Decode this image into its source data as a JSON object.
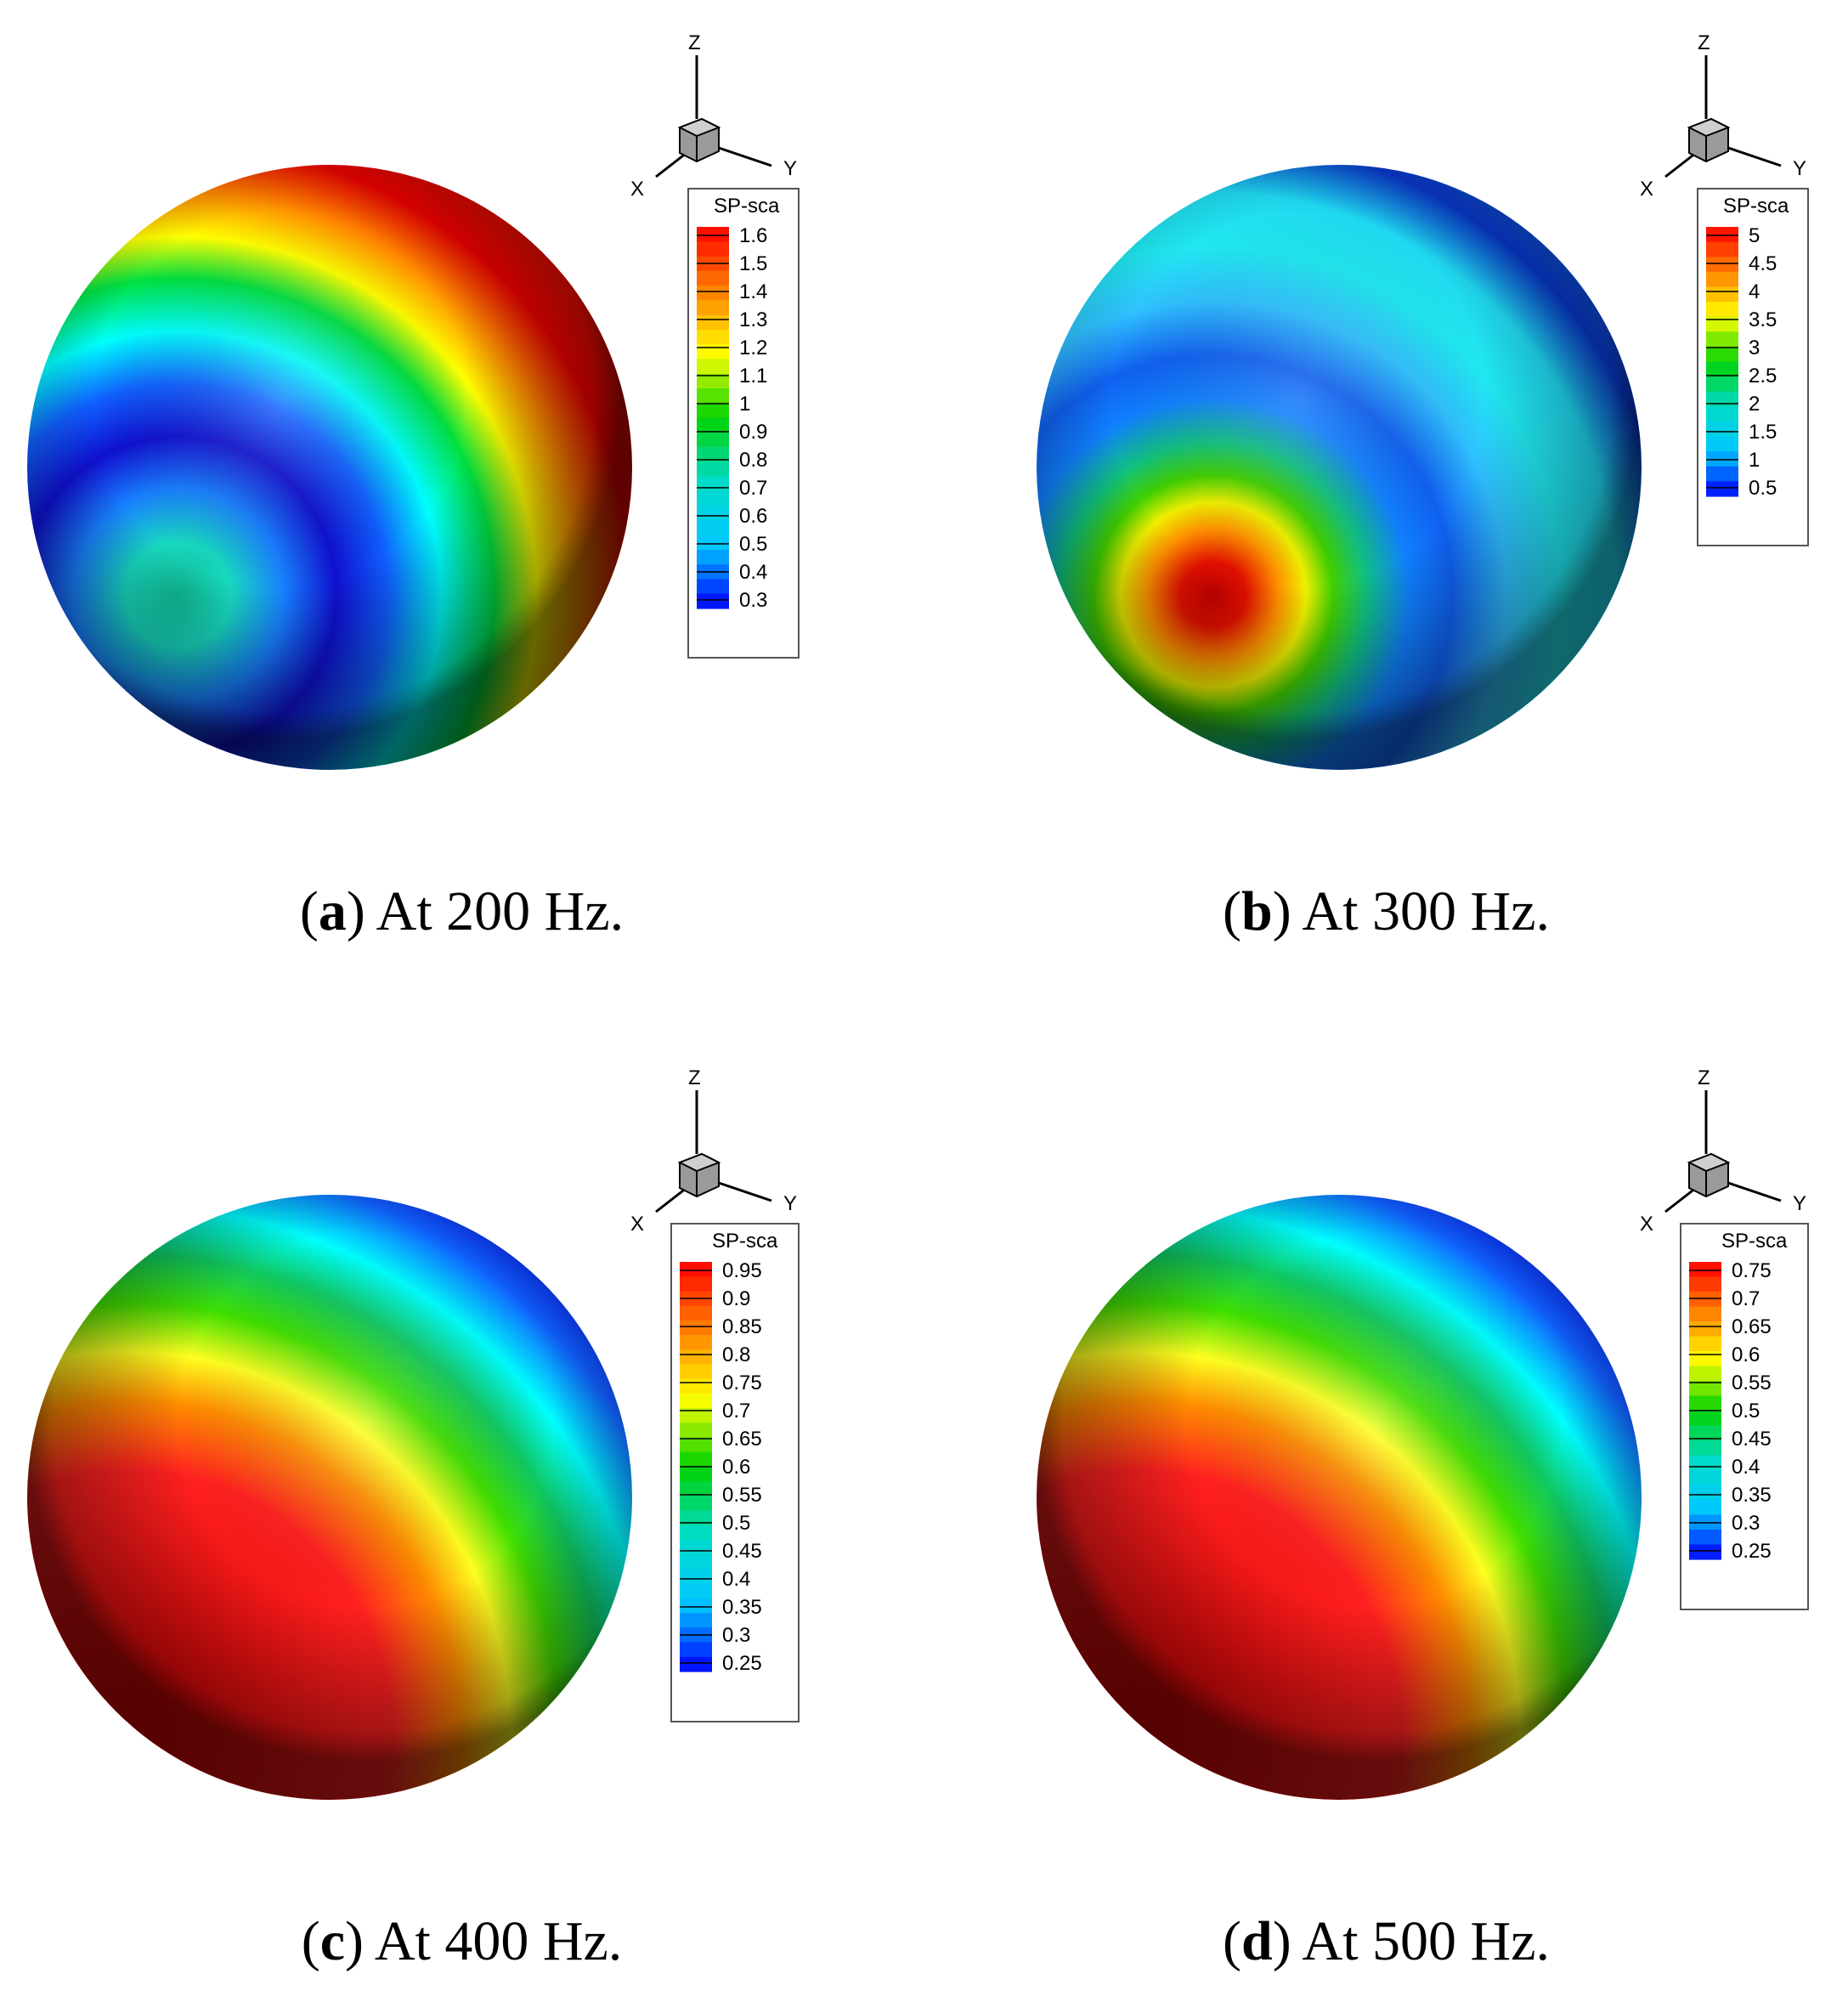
{
  "colors": {
    "red": "#ff0000",
    "yellow": "#ffff00",
    "green": "#00cc00",
    "cyan": "#00ffff",
    "blue": "#0000ff",
    "dark_red": "#8b0000",
    "dark_blue": "#00007a"
  },
  "axis_triad": {
    "z": "Z",
    "y": "Y",
    "x": "X"
  },
  "chart_data": [
    {
      "type": "heatmap",
      "panel": "a",
      "caption_letter": "a",
      "caption_text": "At 200 Hz.",
      "legend_title": "SP-sca",
      "ticks": [
        "1.6",
        "1.5",
        "1.4",
        "1.3",
        "1.2",
        "1.1",
        "1",
        "0.9",
        "0.8",
        "0.7",
        "0.6",
        "0.5",
        "0.4",
        "0.3"
      ],
      "range": [
        0.3,
        1.6
      ]
    },
    {
      "type": "heatmap",
      "panel": "b",
      "caption_letter": "b",
      "caption_text": "At 300 Hz.",
      "legend_title": "SP-sca",
      "ticks": [
        "5",
        "4.5",
        "4",
        "3.5",
        "3",
        "2.5",
        "2",
        "1.5",
        "1",
        "0.5"
      ],
      "range": [
        0.5,
        5
      ]
    },
    {
      "type": "heatmap",
      "panel": "c",
      "caption_letter": "c",
      "caption_text": "At 400 Hz.",
      "legend_title": "SP-sca",
      "ticks": [
        "0.95",
        "0.9",
        "0.85",
        "0.8",
        "0.75",
        "0.7",
        "0.65",
        "0.6",
        "0.55",
        "0.5",
        "0.45",
        "0.4",
        "0.35",
        "0.3",
        "0.25"
      ],
      "range": [
        0.25,
        0.95
      ]
    },
    {
      "type": "heatmap",
      "panel": "d",
      "caption_letter": "d",
      "caption_text": "At 500 Hz.",
      "legend_title": "SP-sca",
      "ticks": [
        "0.75",
        "0.7",
        "0.65",
        "0.6",
        "0.55",
        "0.5",
        "0.45",
        "0.4",
        "0.35",
        "0.3",
        "0.25"
      ],
      "range": [
        0.25,
        0.75
      ]
    }
  ]
}
